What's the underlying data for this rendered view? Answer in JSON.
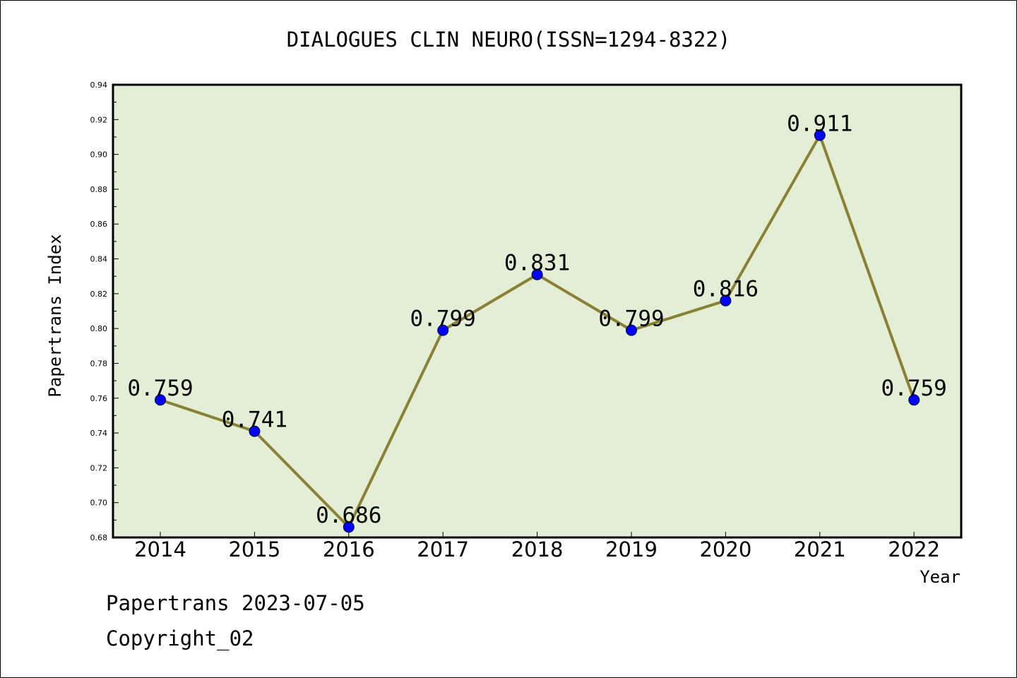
{
  "chart_data": {
    "type": "line",
    "title": "DIALOGUES CLIN NEURO(ISSN=1294-8322)",
    "xlabel": "Year",
    "ylabel": "Papertrans Index",
    "categories": [
      "2014",
      "2015",
      "2016",
      "2017",
      "2018",
      "2019",
      "2020",
      "2021",
      "2022"
    ],
    "series": [
      {
        "values": [
          0.759,
          0.741,
          0.686,
          0.799,
          0.831,
          0.799,
          0.816,
          0.911,
          0.759
        ],
        "data_labels": [
          "0.759",
          "0.741",
          "0.686",
          "0.799",
          "0.831",
          "0.799",
          "0.816",
          "0.911",
          "0.759"
        ]
      }
    ],
    "ylim": [
      0.68,
      0.94
    ],
    "yticks": [
      "0.68",
      "0.70",
      "0.72",
      "0.74",
      "0.76",
      "0.78",
      "0.80",
      "0.82",
      "0.84",
      "0.86",
      "0.88",
      "0.90",
      "0.92",
      "0.94"
    ],
    "grid": false,
    "colors": {
      "plot_background": "#e2efd5",
      "line": "#8b8035",
      "marker": "#0000ff"
    }
  },
  "footer": {
    "line1": "Papertrans 2023-07-05",
    "line2": "Copyright_02"
  }
}
